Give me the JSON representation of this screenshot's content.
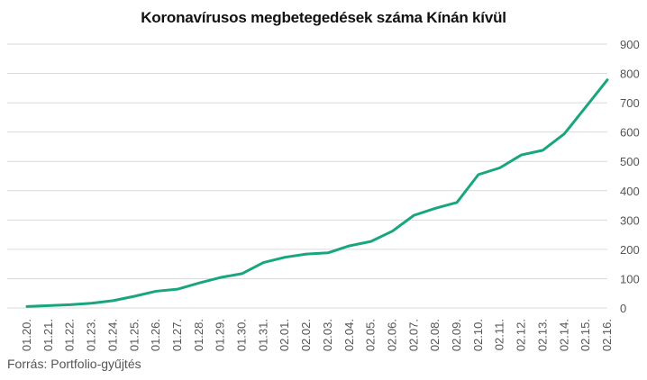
{
  "colors": {
    "line": "#19a67f",
    "grid": "#d9d9d9",
    "tick_text": "#555555",
    "title_text": "#111111"
  },
  "chart_data": {
    "type": "line",
    "title": "Koronavírusos megbetegedések száma Kínán kívül",
    "source": "Forrás: Portfolio-gyűjtés",
    "xlabel": "",
    "ylabel": "",
    "ylim": [
      0,
      900
    ],
    "yticks": [
      0,
      100,
      200,
      300,
      400,
      500,
      600,
      700,
      800,
      900
    ],
    "y_axis_position": "right",
    "grid": true,
    "legend": "none",
    "categories": [
      "01.20.",
      "01.21.",
      "01.22.",
      "01.23.",
      "01.24.",
      "01.25.",
      "01.26.",
      "01.27.",
      "01.28.",
      "01.29.",
      "01.30.",
      "01.31.",
      "02.01.",
      "02.02.",
      "02.03.",
      "02.04.",
      "02.05.",
      "02.06.",
      "02.07.",
      "02.08.",
      "02.09.",
      "02.10.",
      "02.11.",
      "02.12.",
      "02.13.",
      "02.14.",
      "02.15.",
      "02.16."
    ],
    "series": [
      {
        "values": [
          5,
          8,
          11,
          16,
          25,
          40,
          57,
          64,
          85,
          104,
          117,
          155,
          173,
          184,
          188,
          212,
          227,
          262,
          316,
          340,
          360,
          455,
          478,
          522,
          538,
          594,
          686,
          778
        ]
      }
    ]
  }
}
